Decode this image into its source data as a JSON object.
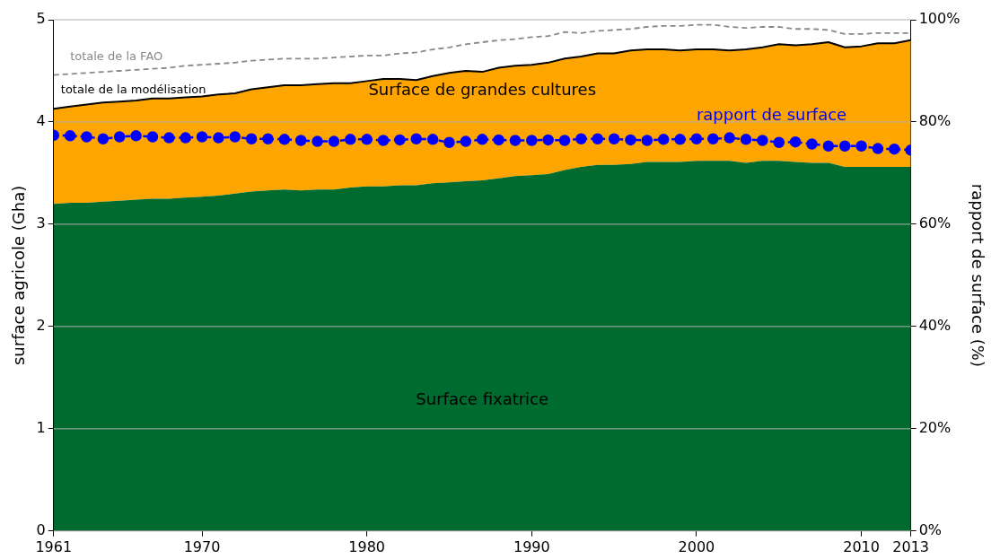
{
  "chart_data": {
    "type": "area",
    "stacked": true,
    "xlabel": null,
    "ylabel": "surface agricole (Gha)",
    "y2label": "rapport de surface (%)",
    "x": [
      1961,
      1962,
      1963,
      1964,
      1965,
      1966,
      1967,
      1968,
      1969,
      1970,
      1971,
      1972,
      1973,
      1974,
      1975,
      1976,
      1977,
      1978,
      1979,
      1980,
      1981,
      1982,
      1983,
      1984,
      1985,
      1986,
      1987,
      1988,
      1989,
      1990,
      1991,
      1992,
      1993,
      1994,
      1995,
      1996,
      1997,
      1998,
      1999,
      2000,
      2001,
      2002,
      2003,
      2004,
      2005,
      2006,
      2007,
      2008,
      2009,
      2010,
      2011,
      2012,
      2013
    ],
    "xlim": [
      1961,
      2013
    ],
    "xticks": [
      1961,
      1970,
      1980,
      1990,
      2000,
      2010,
      2013
    ],
    "ylim": [
      0,
      5
    ],
    "yticks": [
      0,
      1,
      2,
      3,
      4,
      5
    ],
    "y2lim": [
      0,
      100
    ],
    "y2ticks": [
      {
        "value": 0,
        "label": "0%"
      },
      {
        "value": 20,
        "label": "20%"
      },
      {
        "value": 40,
        "label": "40%"
      },
      {
        "value": 60,
        "label": "60%"
      },
      {
        "value": 80,
        "label": "80%"
      },
      {
        "value": 100,
        "label": "100%"
      }
    ],
    "grid": "y",
    "legend": false,
    "annotations": [
      "totale de la modélisation"
    ],
    "series": [
      {
        "name": "Surface fixatrice",
        "color": "#006b2e",
        "values": [
          3.2,
          3.21,
          3.21,
          3.22,
          3.23,
          3.24,
          3.25,
          3.25,
          3.26,
          3.27,
          3.28,
          3.3,
          3.32,
          3.33,
          3.34,
          3.33,
          3.34,
          3.34,
          3.36,
          3.37,
          3.37,
          3.38,
          3.38,
          3.4,
          3.41,
          3.42,
          3.43,
          3.45,
          3.47,
          3.48,
          3.49,
          3.53,
          3.56,
          3.58,
          3.58,
          3.59,
          3.61,
          3.61,
          3.61,
          3.62,
          3.62,
          3.62,
          3.6,
          3.62,
          3.62,
          3.61,
          3.6,
          3.6,
          3.56,
          3.56,
          3.56,
          3.56,
          3.56
        ]
      },
      {
        "name": "Surface de grandes cultures",
        "color": "#ffa500",
        "values": [
          0.93,
          0.94,
          0.96,
          0.97,
          0.97,
          0.97,
          0.98,
          0.98,
          0.98,
          0.98,
          0.99,
          0.98,
          1.0,
          1.01,
          1.02,
          1.03,
          1.03,
          1.04,
          1.02,
          1.03,
          1.05,
          1.04,
          1.03,
          1.05,
          1.07,
          1.08,
          1.06,
          1.08,
          1.08,
          1.08,
          1.09,
          1.09,
          1.08,
          1.09,
          1.09,
          1.11,
          1.1,
          1.1,
          1.09,
          1.09,
          1.09,
          1.08,
          1.11,
          1.11,
          1.14,
          1.14,
          1.16,
          1.18,
          1.17,
          1.18,
          1.21,
          1.21,
          1.24
        ]
      },
      {
        "name": "totale de la FAO",
        "type": "line",
        "color": "#888888",
        "line_style": "dashed",
        "marker": "none",
        "values": [
          4.46,
          4.47,
          4.48,
          4.49,
          4.5,
          4.51,
          4.52,
          4.53,
          4.55,
          4.56,
          4.57,
          4.58,
          4.6,
          4.61,
          4.62,
          4.62,
          4.62,
          4.63,
          4.64,
          4.65,
          4.65,
          4.67,
          4.68,
          4.71,
          4.73,
          4.76,
          4.78,
          4.8,
          4.81,
          4.83,
          4.84,
          4.88,
          4.87,
          4.89,
          4.9,
          4.91,
          4.93,
          4.94,
          4.94,
          4.95,
          4.95,
          4.93,
          4.92,
          4.93,
          4.93,
          4.91,
          4.91,
          4.9,
          4.86,
          4.86,
          4.87,
          4.87,
          4.87
        ]
      },
      {
        "name": "rapport de surface",
        "type": "line",
        "axis": "y2",
        "color": "#0000ff",
        "line_style": "dashed",
        "marker": "circle",
        "values": [
          77.4,
          77.3,
          77.1,
          76.7,
          77.1,
          77.3,
          77.1,
          76.9,
          76.9,
          77.1,
          76.9,
          77.1,
          76.7,
          76.7,
          76.6,
          76.4,
          76.2,
          76.2,
          76.6,
          76.6,
          76.4,
          76.5,
          76.7,
          76.6,
          76.0,
          76.2,
          76.6,
          76.5,
          76.4,
          76.4,
          76.5,
          76.4,
          76.7,
          76.7,
          76.7,
          76.5,
          76.4,
          76.6,
          76.6,
          76.7,
          76.7,
          76.9,
          76.6,
          76.4,
          76.0,
          76.1,
          75.7,
          75.3,
          75.3,
          75.3,
          74.8,
          74.7,
          74.5
        ]
      }
    ]
  }
}
